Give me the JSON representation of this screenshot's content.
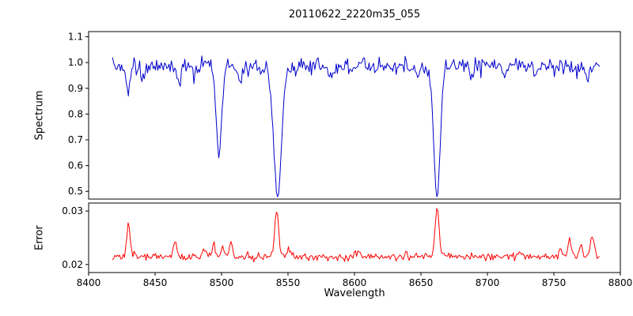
{
  "figure": {
    "title": "20110622_2220m35_055",
    "xlabel": "Wavelength",
    "ylabel_spectrum": "Spectrum",
    "ylabel_error": "Error"
  },
  "colors": {
    "spectrum_line": "#0000cd",
    "error_line": "#ff0000",
    "axis": "#000000",
    "text": "#000000",
    "background": "#ffffff"
  },
  "chart_data": [
    {
      "type": "line",
      "series_name": "spectrum",
      "title": "20110622_2220m35_055",
      "ylabel": "Spectrum",
      "xlim": [
        8400,
        8800
      ],
      "ylim": [
        0.47,
        1.12
      ],
      "x_range": [
        8418,
        8785
      ],
      "x_step": 0.85,
      "yticks": [
        "0.5",
        "0.6",
        "0.7",
        "0.8",
        "0.9",
        "1.0",
        "1.1"
      ],
      "continuum": 0.985,
      "noise_sigma": 0.016,
      "absorption_lines": [
        {
          "center": 8498.0,
          "min_value": 0.64,
          "depth": 0.345,
          "sigma": 2.0
        },
        {
          "center": 8542.1,
          "min_value": 0.48,
          "depth": 0.505,
          "sigma": 2.9
        },
        {
          "center": 8662.1,
          "min_value": 0.48,
          "depth": 0.5,
          "sigma": 2.5
        }
      ],
      "minor_dips": [
        {
          "center": 8430,
          "depth": 0.11,
          "sigma": 1.3
        },
        {
          "center": 8441,
          "depth": 0.05,
          "sigma": 1.2
        },
        {
          "center": 8468,
          "depth": 0.06,
          "sigma": 1.3
        },
        {
          "center": 8480,
          "depth": 0.04,
          "sigma": 1.2
        },
        {
          "center": 8514,
          "depth": 0.05,
          "sigma": 1.3
        },
        {
          "center": 8529,
          "depth": 0.04,
          "sigma": 1.2
        },
        {
          "center": 8583,
          "depth": 0.05,
          "sigma": 1.3
        },
        {
          "center": 8598,
          "depth": 0.04,
          "sigma": 1.2
        },
        {
          "center": 8648,
          "depth": 0.04,
          "sigma": 1.2
        },
        {
          "center": 8688,
          "depth": 0.05,
          "sigma": 1.3
        },
        {
          "center": 8713,
          "depth": 0.04,
          "sigma": 1.2
        },
        {
          "center": 8736,
          "depth": 0.04,
          "sigma": 1.2
        },
        {
          "center": 8775,
          "depth": 0.05,
          "sigma": 1.3
        }
      ],
      "grid": false,
      "legend": false
    },
    {
      "type": "line",
      "series_name": "error",
      "ylabel": "Error",
      "xlabel": "Wavelength",
      "xlim": [
        8400,
        8800
      ],
      "ylim": [
        0.0185,
        0.0315
      ],
      "x_range": [
        8418,
        8785
      ],
      "x_step": 0.9,
      "yticks": [
        "0.02",
        "0.03"
      ],
      "xticks": [
        "8400",
        "8450",
        "8500",
        "8550",
        "8600",
        "8650",
        "8700",
        "8750",
        "8800"
      ],
      "baseline": 0.0215,
      "noise_sigma": 0.00035,
      "spikes": [
        {
          "center": 8430.0,
          "amp": 0.0065,
          "sigma": 1.2
        },
        {
          "center": 8465.0,
          "amp": 0.0028,
          "sigma": 1.3
        },
        {
          "center": 8487.0,
          "amp": 0.0018,
          "sigma": 1.2
        },
        {
          "center": 8494.0,
          "amp": 0.0024,
          "sigma": 1.2
        },
        {
          "center": 8501.0,
          "amp": 0.0018,
          "sigma": 1.2
        },
        {
          "center": 8507.0,
          "amp": 0.0024,
          "sigma": 1.2
        },
        {
          "center": 8541.5,
          "amp": 0.0085,
          "sigma": 1.5
        },
        {
          "center": 8550.0,
          "amp": 0.0012,
          "sigma": 1.2
        },
        {
          "center": 8602.0,
          "amp": 0.0008,
          "sigma": 1.5
        },
        {
          "center": 8662.1,
          "amp": 0.0088,
          "sigma": 1.5
        },
        {
          "center": 8725.0,
          "amp": 0.0008,
          "sigma": 1.5
        },
        {
          "center": 8755.0,
          "amp": 0.0018,
          "sigma": 1.2
        },
        {
          "center": 8762.0,
          "amp": 0.0034,
          "sigma": 1.2
        },
        {
          "center": 8770.0,
          "amp": 0.0024,
          "sigma": 1.2
        },
        {
          "center": 8779.0,
          "amp": 0.004,
          "sigma": 1.3
        }
      ],
      "grid": false,
      "legend": false
    }
  ]
}
